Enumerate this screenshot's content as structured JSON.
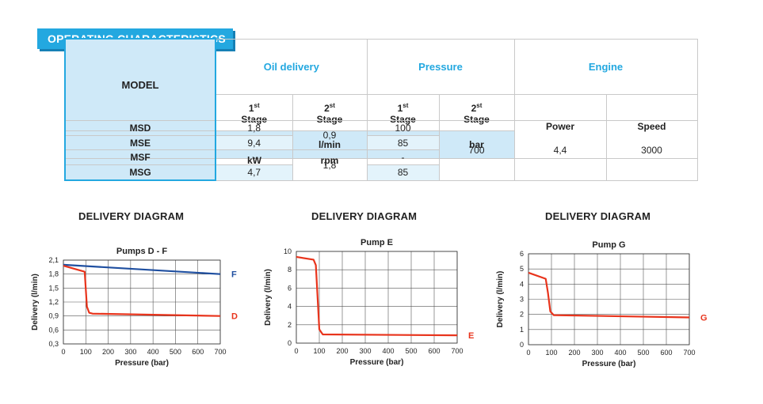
{
  "header": {
    "title": "OPERATING CHARACTERISTICS"
  },
  "table": {
    "model_label": "MODEL",
    "groups": [
      "Oil delivery",
      "Pressure",
      "Engine"
    ],
    "stage_sup": [
      "st",
      "st",
      "st",
      "st"
    ],
    "stage_num": [
      "1",
      "2",
      "1",
      "2"
    ],
    "stage_word": "Stage",
    "power_label": "Power",
    "speed_label": "Speed",
    "units": [
      "l/min",
      "l/min",
      "bar",
      "bar",
      "kW",
      "rpm"
    ],
    "rows": [
      {
        "model": "MSD",
        "oil1": "1,8",
        "press1": "100"
      },
      {
        "model": "MSE",
        "oil1": "9,4",
        "press1": "85"
      },
      {
        "model": "MSF",
        "oil1": "-",
        "press1": "-"
      },
      {
        "model": "MSG",
        "oil1": "4,7",
        "press1": "85"
      }
    ],
    "oil2_top": "0,9",
    "oil2_bottom": "1,8",
    "press2": "700",
    "power": "4,4",
    "speed": "3000"
  },
  "diagram_title": "DELIVERY DIAGRAM",
  "chart_data": [
    {
      "type": "line",
      "title": "Pumps D - F",
      "xlabel": "Pressure (bar)",
      "ylabel": "Delivery (l/min)",
      "xlim": [
        0,
        700
      ],
      "ylim": [
        0.3,
        2.1
      ],
      "xticks": [
        "0",
        "100",
        "200",
        "300",
        "400",
        "500",
        "600",
        "700"
      ],
      "yticks": [
        "0,3",
        "0,6",
        "0,9",
        "1,2",
        "1,5",
        "1,8",
        "2,1"
      ],
      "grid": true,
      "series": [
        {
          "name": "F",
          "color": "#1f4fa0",
          "x": [
            0,
            700
          ],
          "y": [
            2.0,
            1.8
          ]
        },
        {
          "name": "D",
          "color": "#e8341c",
          "x": [
            0,
            95,
            105,
            115,
            130,
            700
          ],
          "y": [
            1.98,
            1.85,
            1.1,
            0.97,
            0.95,
            0.9
          ]
        }
      ]
    },
    {
      "type": "line",
      "title": "Pump E",
      "xlabel": "Pressure (bar)",
      "ylabel": "Delivery (l/min)",
      "xlim": [
        0,
        700
      ],
      "ylim": [
        0,
        10
      ],
      "xticks": [
        "0",
        "100",
        "200",
        "300",
        "400",
        "500",
        "600",
        "700"
      ],
      "yticks": [
        "0",
        "2",
        "4",
        "6",
        "8",
        "10"
      ],
      "grid": true,
      "series": [
        {
          "name": "E",
          "color": "#e8341c",
          "x": [
            0,
            75,
            85,
            100,
            115,
            700
          ],
          "y": [
            9.4,
            9.1,
            8.5,
            1.5,
            0.95,
            0.85
          ]
        }
      ]
    },
    {
      "type": "line",
      "title": "Pump G",
      "xlabel": "Pressure (bar)",
      "ylabel": "Delivery (l/min)",
      "xlim": [
        0,
        700
      ],
      "ylim": [
        0,
        6
      ],
      "xticks": [
        "0",
        "100",
        "200",
        "300",
        "400",
        "500",
        "600",
        "700"
      ],
      "yticks": [
        "0",
        "1",
        "2",
        "3",
        "4",
        "5",
        "6"
      ],
      "grid": true,
      "series": [
        {
          "name": "G",
          "color": "#e8341c",
          "x": [
            0,
            75,
            85,
            95,
            110,
            700
          ],
          "y": [
            4.75,
            4.35,
            3.4,
            2.2,
            1.95,
            1.8
          ]
        }
      ]
    }
  ]
}
